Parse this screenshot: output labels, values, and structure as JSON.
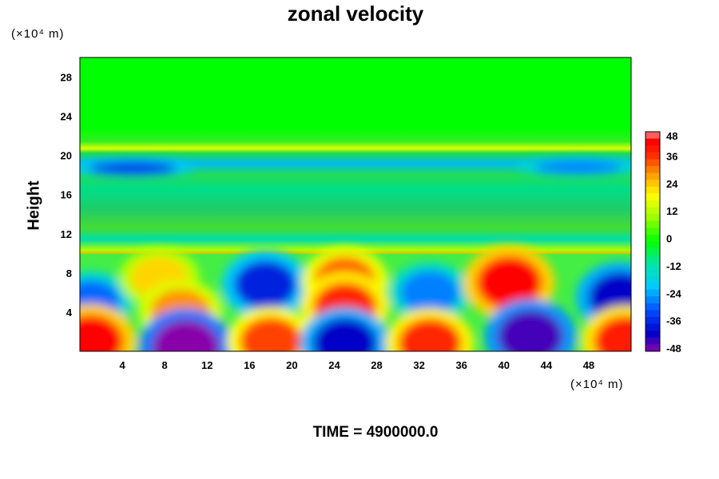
{
  "chart_data": {
    "type": "heatmap",
    "title": "zonal velocity",
    "ylabel": "Height",
    "y_unit": "(×10⁴ m)",
    "x_unit": "(×10⁴ m)",
    "xlim": [
      0,
      52
    ],
    "ylim": [
      0,
      30
    ],
    "x_ticks": [
      "4",
      "8",
      "12",
      "16",
      "20",
      "24",
      "28",
      "32",
      "36",
      "40",
      "44",
      "48"
    ],
    "y_ticks": [
      "4",
      "8",
      "12",
      "16",
      "20",
      "24",
      "28"
    ],
    "colorbar": {
      "range": [
        -48,
        48
      ],
      "ticks": [
        "48",
        "36",
        "24",
        "12",
        "0",
        "-12",
        "-24",
        "-36",
        "-48"
      ]
    },
    "footer": "TIME = 4900000.0",
    "features": [
      {
        "x": 1,
        "y": 5,
        "v": -28
      },
      {
        "x": 7.5,
        "y": 7.5,
        "v": 24
      },
      {
        "x": 9.5,
        "y": 4,
        "v": 30
      },
      {
        "x": 17.5,
        "y": 6.8,
        "v": -36
      },
      {
        "x": 25,
        "y": 7.2,
        "v": 34
      },
      {
        "x": 25,
        "y": 4.5,
        "v": 38
      },
      {
        "x": 33,
        "y": 6,
        "v": -26
      },
      {
        "x": 40.5,
        "y": 7,
        "v": 44
      },
      {
        "x": 51,
        "y": 5.5,
        "v": -40
      },
      {
        "x": 10,
        "y": 0.4,
        "v": -48
      },
      {
        "x": 1,
        "y": 1,
        "v": 44
      },
      {
        "x": 18,
        "y": 1,
        "v": 36
      },
      {
        "x": 25,
        "y": 0.8,
        "v": -40
      },
      {
        "x": 33,
        "y": 0.8,
        "v": 38
      },
      {
        "x": 42.5,
        "y": 1.5,
        "v": -44
      },
      {
        "x": 51.5,
        "y": 1,
        "v": 40
      },
      {
        "x": 5,
        "y": 18.7,
        "v": -34
      },
      {
        "x": 47,
        "y": 18.8,
        "v": -26
      }
    ]
  }
}
